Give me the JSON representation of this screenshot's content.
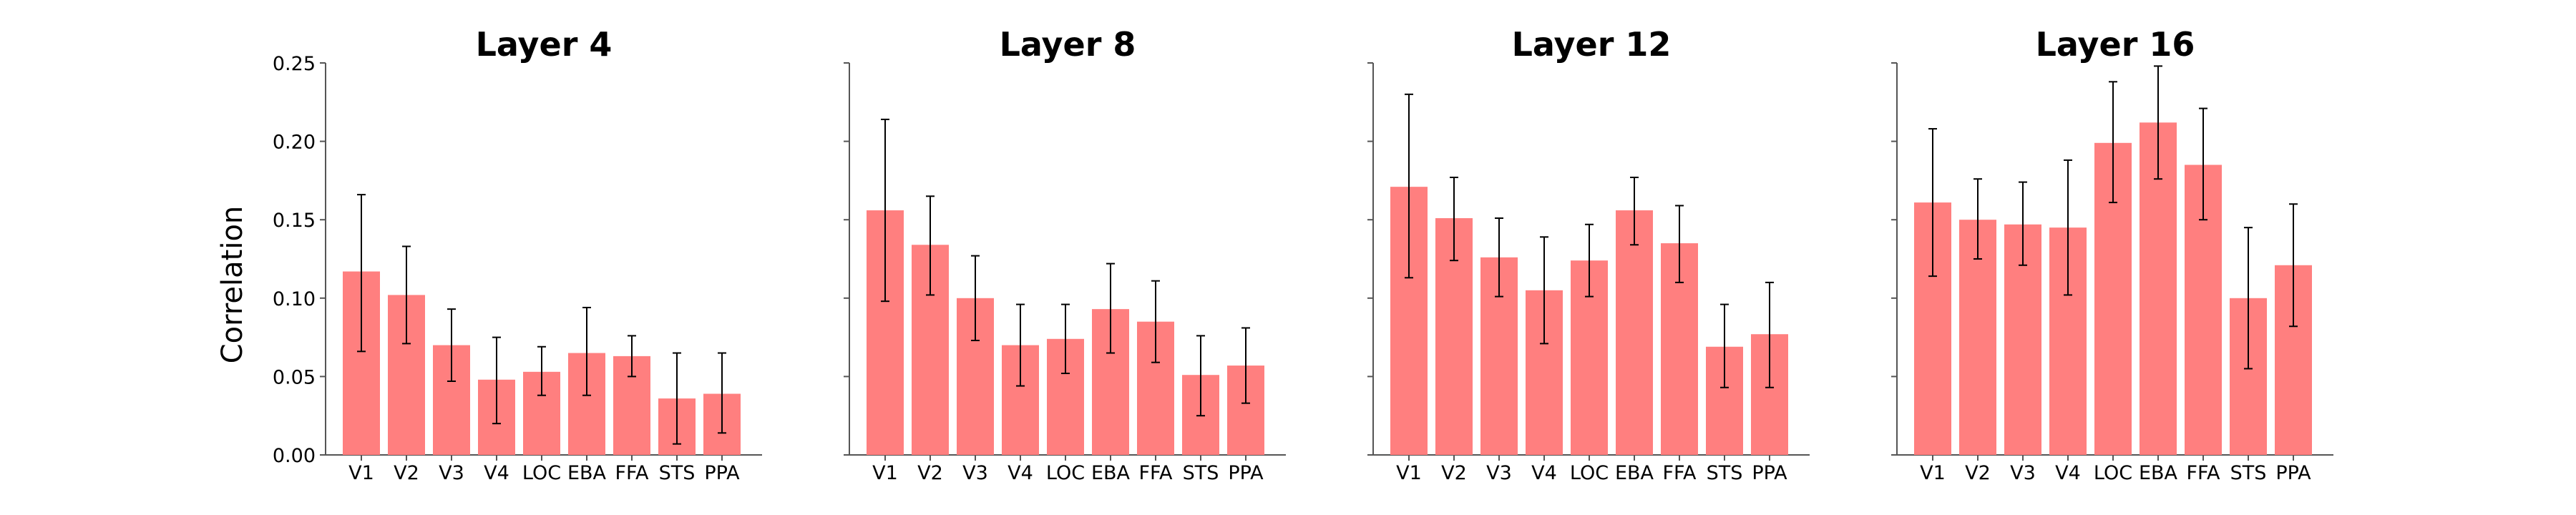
{
  "figure": {
    "ylabel": "Correlation",
    "bar_color": "#ff7f7f",
    "error_color": "#000000",
    "axis_color": "#555555"
  },
  "chart_data": [
    {
      "type": "bar",
      "title": "Layer 4",
      "categories": [
        "V1",
        "V2",
        "V3",
        "V4",
        "LOC",
        "EBA",
        "FFA",
        "STS",
        "PPA"
      ],
      "values": [
        0.117,
        0.102,
        0.07,
        0.048,
        0.053,
        0.065,
        0.063,
        0.036,
        0.039
      ],
      "error_low": [
        0.066,
        0.071,
        0.047,
        0.02,
        0.038,
        0.038,
        0.05,
        0.007,
        0.014
      ],
      "error_high": [
        0.166,
        0.133,
        0.093,
        0.075,
        0.069,
        0.094,
        0.076,
        0.065,
        0.065
      ],
      "ylim": [
        0,
        0.25
      ],
      "yticks": [
        "0.00",
        "0.05",
        "0.10",
        "0.15",
        "0.20",
        "0.25"
      ],
      "show_yticklabels": true
    },
    {
      "type": "bar",
      "title": "Layer 8",
      "categories": [
        "V1",
        "V2",
        "V3",
        "V4",
        "LOC",
        "EBA",
        "FFA",
        "STS",
        "PPA"
      ],
      "values": [
        0.156,
        0.134,
        0.1,
        0.07,
        0.074,
        0.093,
        0.085,
        0.051,
        0.057
      ],
      "error_low": [
        0.098,
        0.102,
        0.073,
        0.044,
        0.052,
        0.065,
        0.059,
        0.025,
        0.033
      ],
      "error_high": [
        0.214,
        0.165,
        0.127,
        0.096,
        0.096,
        0.122,
        0.111,
        0.076,
        0.081
      ],
      "ylim": [
        0,
        0.25
      ],
      "yticks": [
        "0.00",
        "0.05",
        "0.10",
        "0.15",
        "0.20",
        "0.25"
      ],
      "show_yticklabels": false
    },
    {
      "type": "bar",
      "title": "Layer 12",
      "categories": [
        "V1",
        "V2",
        "V3",
        "V4",
        "LOC",
        "EBA",
        "FFA",
        "STS",
        "PPA"
      ],
      "values": [
        0.171,
        0.151,
        0.126,
        0.105,
        0.124,
        0.156,
        0.135,
        0.069,
        0.077
      ],
      "error_low": [
        0.113,
        0.124,
        0.101,
        0.071,
        0.101,
        0.134,
        0.11,
        0.043,
        0.043
      ],
      "error_high": [
        0.23,
        0.177,
        0.151,
        0.139,
        0.147,
        0.177,
        0.159,
        0.096,
        0.11
      ],
      "ylim": [
        0,
        0.25
      ],
      "yticks": [
        "0.00",
        "0.05",
        "0.10",
        "0.15",
        "0.20",
        "0.25"
      ],
      "show_yticklabels": false
    },
    {
      "type": "bar",
      "title": "Layer 16",
      "categories": [
        "V1",
        "V2",
        "V3",
        "V4",
        "LOC",
        "EBA",
        "FFA",
        "STS",
        "PPA"
      ],
      "values": [
        0.161,
        0.15,
        0.147,
        0.145,
        0.199,
        0.212,
        0.185,
        0.1,
        0.121
      ],
      "error_low": [
        0.114,
        0.125,
        0.121,
        0.102,
        0.161,
        0.176,
        0.15,
        0.055,
        0.082
      ],
      "error_high": [
        0.208,
        0.176,
        0.174,
        0.188,
        0.238,
        0.248,
        0.221,
        0.145,
        0.16
      ],
      "ylim": [
        0,
        0.25
      ],
      "yticks": [
        "0.00",
        "0.05",
        "0.10",
        "0.15",
        "0.20",
        "0.25"
      ],
      "show_yticklabels": false
    }
  ]
}
